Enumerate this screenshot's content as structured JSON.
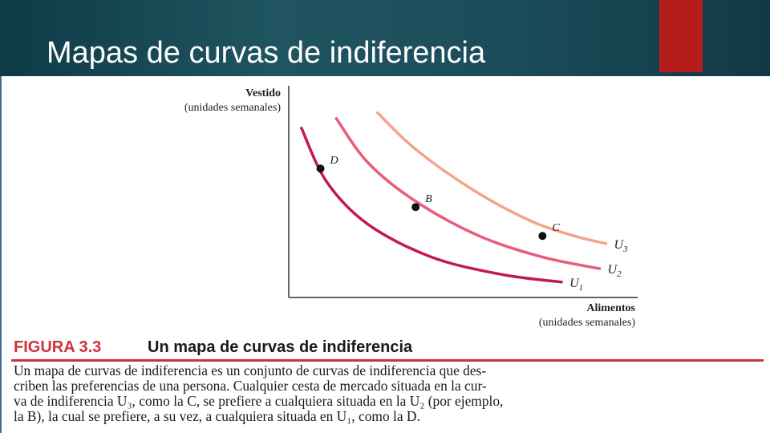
{
  "slide": {
    "title": "Mapas de curvas de indiferencia",
    "colors": {
      "header_bg": "#1a4a55",
      "accent": "#b51c1c",
      "curve_u1": "#c2185b",
      "curve_u2": "#e85d7a",
      "curve_u3": "#f3a58c",
      "figure_label": "#d0313b"
    }
  },
  "figure": {
    "label": "FIGURA 3.3",
    "heading": "Un mapa de curvas de indiferencia",
    "caption_lines": [
      "Un mapa de curvas de indiferencia es un conjunto de curvas de indiferencia que des-",
      "criben las preferencias de una persona. Cualquier cesta de mercado situada en la cur-",
      "va de indiferencia U₃, como la C, se prefiere a cualquiera situada en la U₂ (por ejemplo,",
      "la B), la cual se prefiere, a su vez, a cualquiera situada en U₁, como la D."
    ]
  },
  "chart_data": {
    "type": "line",
    "ylabel": "Vestido",
    "ylabel_sub": "(unidades semanales)",
    "xlabel": "Alimentos",
    "xlabel_sub": "(unidades semanales)",
    "series": [
      {
        "name": "U1",
        "points": [
          [
            0.4,
            8.8
          ],
          [
            1.2,
            6.0
          ],
          [
            2.5,
            3.8
          ],
          [
            4.5,
            2.1
          ],
          [
            6.7,
            1.2
          ],
          [
            8.6,
            0.8
          ]
        ]
      },
      {
        "name": "U2",
        "points": [
          [
            1.5,
            9.3
          ],
          [
            2.5,
            7.0
          ],
          [
            4.0,
            5.0
          ],
          [
            6.0,
            3.2
          ],
          [
            8.0,
            2.1
          ],
          [
            9.8,
            1.5
          ]
        ]
      },
      {
        "name": "U3",
        "points": [
          [
            2.8,
            9.6
          ],
          [
            4.0,
            7.7
          ],
          [
            5.8,
            5.6
          ],
          [
            7.6,
            4.0
          ],
          [
            9.0,
            3.2
          ],
          [
            10.0,
            2.8
          ]
        ]
      }
    ],
    "points": [
      {
        "label": "D",
        "x": 1.0,
        "y": 6.7,
        "series": "U1"
      },
      {
        "label": "B",
        "x": 4.0,
        "y": 4.7,
        "series": "U2"
      },
      {
        "label": "C",
        "x": 8.0,
        "y": 3.2,
        "series": "U3"
      }
    ],
    "xlim": [
      0,
      11
    ],
    "ylim": [
      0,
      11
    ],
    "grid": false,
    "curve_labels": [
      {
        "text": "U",
        "sub": "1",
        "series": "U1"
      },
      {
        "text": "U",
        "sub": "2",
        "series": "U2"
      },
      {
        "text": "U",
        "sub": "3",
        "series": "U3"
      }
    ]
  }
}
